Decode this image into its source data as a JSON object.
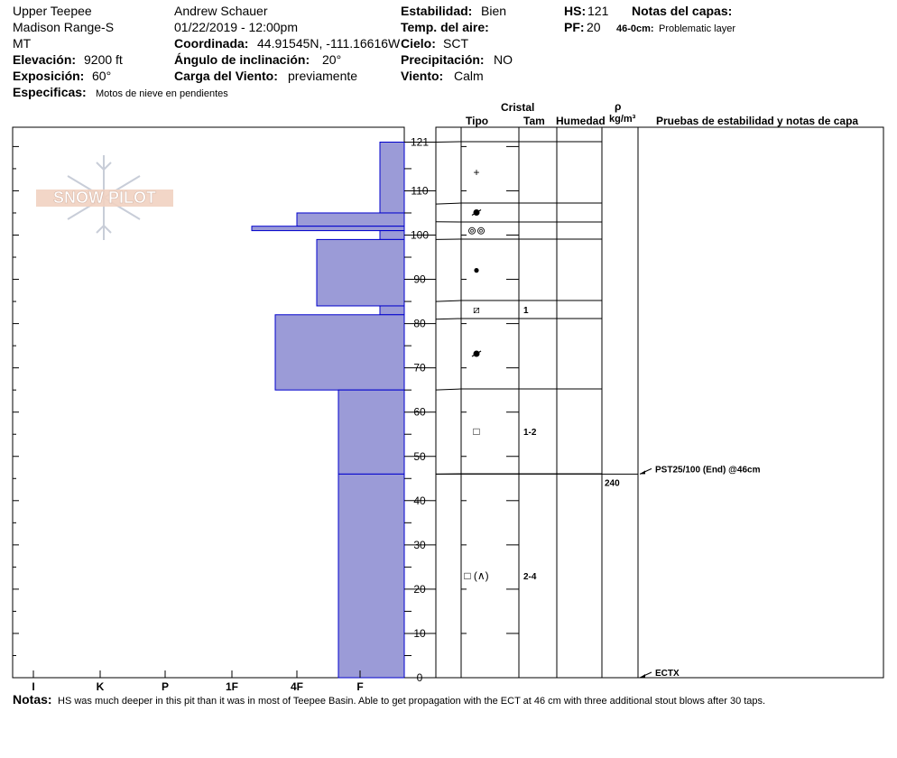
{
  "header": {
    "location": "Upper Teepee",
    "range": "Madison Range-S",
    "state": "MT",
    "elevation_label": "Elevación:",
    "elevation_value": "9200 ft",
    "aspect_label": "Exposición:",
    "aspect_value": "60°",
    "specifics_label": "Especificas:",
    "specifics_value": "Motos de nieve en pendientes",
    "observer": "Andrew Schauer",
    "datetime": "01/22/2019 - 12:00pm",
    "coord_label": "Coordinada:",
    "coord_value": "44.91545N, -111.16616W",
    "slope_label": "Ángulo de inclinación:",
    "slope_value": "20°",
    "wind_load_label": "Carga del Viento:",
    "wind_load_value": "previamente",
    "stability_label": "Estabilidad:",
    "stability_value": "Bien",
    "air_temp_label": "Temp. del aire:",
    "sky_label": "Cielo:",
    "sky_value": "SCT",
    "precip_label": "Precipitación:",
    "precip_value": "NO",
    "wind_label": "Viento:",
    "wind_value": "Calm",
    "hs_label": "HS:",
    "hs_value": "121",
    "pf_label": "PF:",
    "pf_value": "20",
    "layer_notes_label": "Notas del capas:",
    "layer_note_depth": "46-0cm:",
    "layer_note_text": "Problematic layer"
  },
  "logo_text": "SNOW PILOT",
  "columns": {
    "crystal": "Cristal",
    "type": "Tipo",
    "size": "Tam",
    "moisture": "Humedad",
    "rho": "ρ",
    "density_unit": "kg/m³",
    "tests": "Pruebas de estabilidad y notas de capa"
  },
  "notes_label": "Notas:",
  "notes_text": "HS was much deeper in this pit than it was in most of Teepee Basin. Able to get propagation with the ECT at 46 cm with three additional stout blows after 30 taps.",
  "colors": {
    "hardness_fill": "#9b9bd7",
    "hardness_edge": "#0000cc"
  },
  "chart_data": {
    "type": "bar",
    "title": "",
    "xlabel": "",
    "ylabel": "",
    "hardness_scale": [
      "I",
      "K",
      "P",
      "1F",
      "4F",
      "F"
    ],
    "ylim": [
      0,
      121
    ],
    "y_ticks": [
      0,
      10,
      20,
      30,
      40,
      50,
      60,
      70,
      80,
      90,
      100,
      110,
      121
    ],
    "hardness_layers": [
      {
        "top": 121,
        "bottom": 105,
        "hardness": "F-"
      },
      {
        "top": 105,
        "bottom": 102,
        "hardness": "4F"
      },
      {
        "top": 102,
        "bottom": 101,
        "hardness": "1F-"
      },
      {
        "top": 101,
        "bottom": 99,
        "hardness": "F-"
      },
      {
        "top": 99,
        "bottom": 84,
        "hardness": "4F-"
      },
      {
        "top": 84,
        "bottom": 82,
        "hardness": "F-"
      },
      {
        "top": 82,
        "bottom": 65,
        "hardness": "4F+"
      },
      {
        "top": 65,
        "bottom": 46,
        "hardness": "F+"
      },
      {
        "top": 46,
        "bottom": 0,
        "hardness": "F+"
      }
    ],
    "layers": [
      {
        "top": 121,
        "bottom": 107,
        "type": "+",
        "size": ""
      },
      {
        "top": 107,
        "bottom": 103,
        "type": "decomposing",
        "size": ""
      },
      {
        "top": 103,
        "bottom": 99,
        "type": "⊚⊚",
        "size": ""
      },
      {
        "top": 99,
        "bottom": 85,
        "type": "●",
        "size": ""
      },
      {
        "top": 85,
        "bottom": 81,
        "type": "⧄",
        "size": "1"
      },
      {
        "top": 81,
        "bottom": 65,
        "type": "decomposing",
        "size": ""
      },
      {
        "top": 65,
        "bottom": 46,
        "type": "□",
        "size": "1-2"
      },
      {
        "top": 46,
        "bottom": 0,
        "type": "□ (∧)",
        "size": "2-4"
      }
    ],
    "densities": [
      {
        "depth": 46,
        "value": "240"
      }
    ],
    "tests": [
      {
        "depth": 46,
        "label": "PST25/100 (End) @46cm"
      },
      {
        "depth": 0,
        "label": "ECTX"
      }
    ]
  }
}
